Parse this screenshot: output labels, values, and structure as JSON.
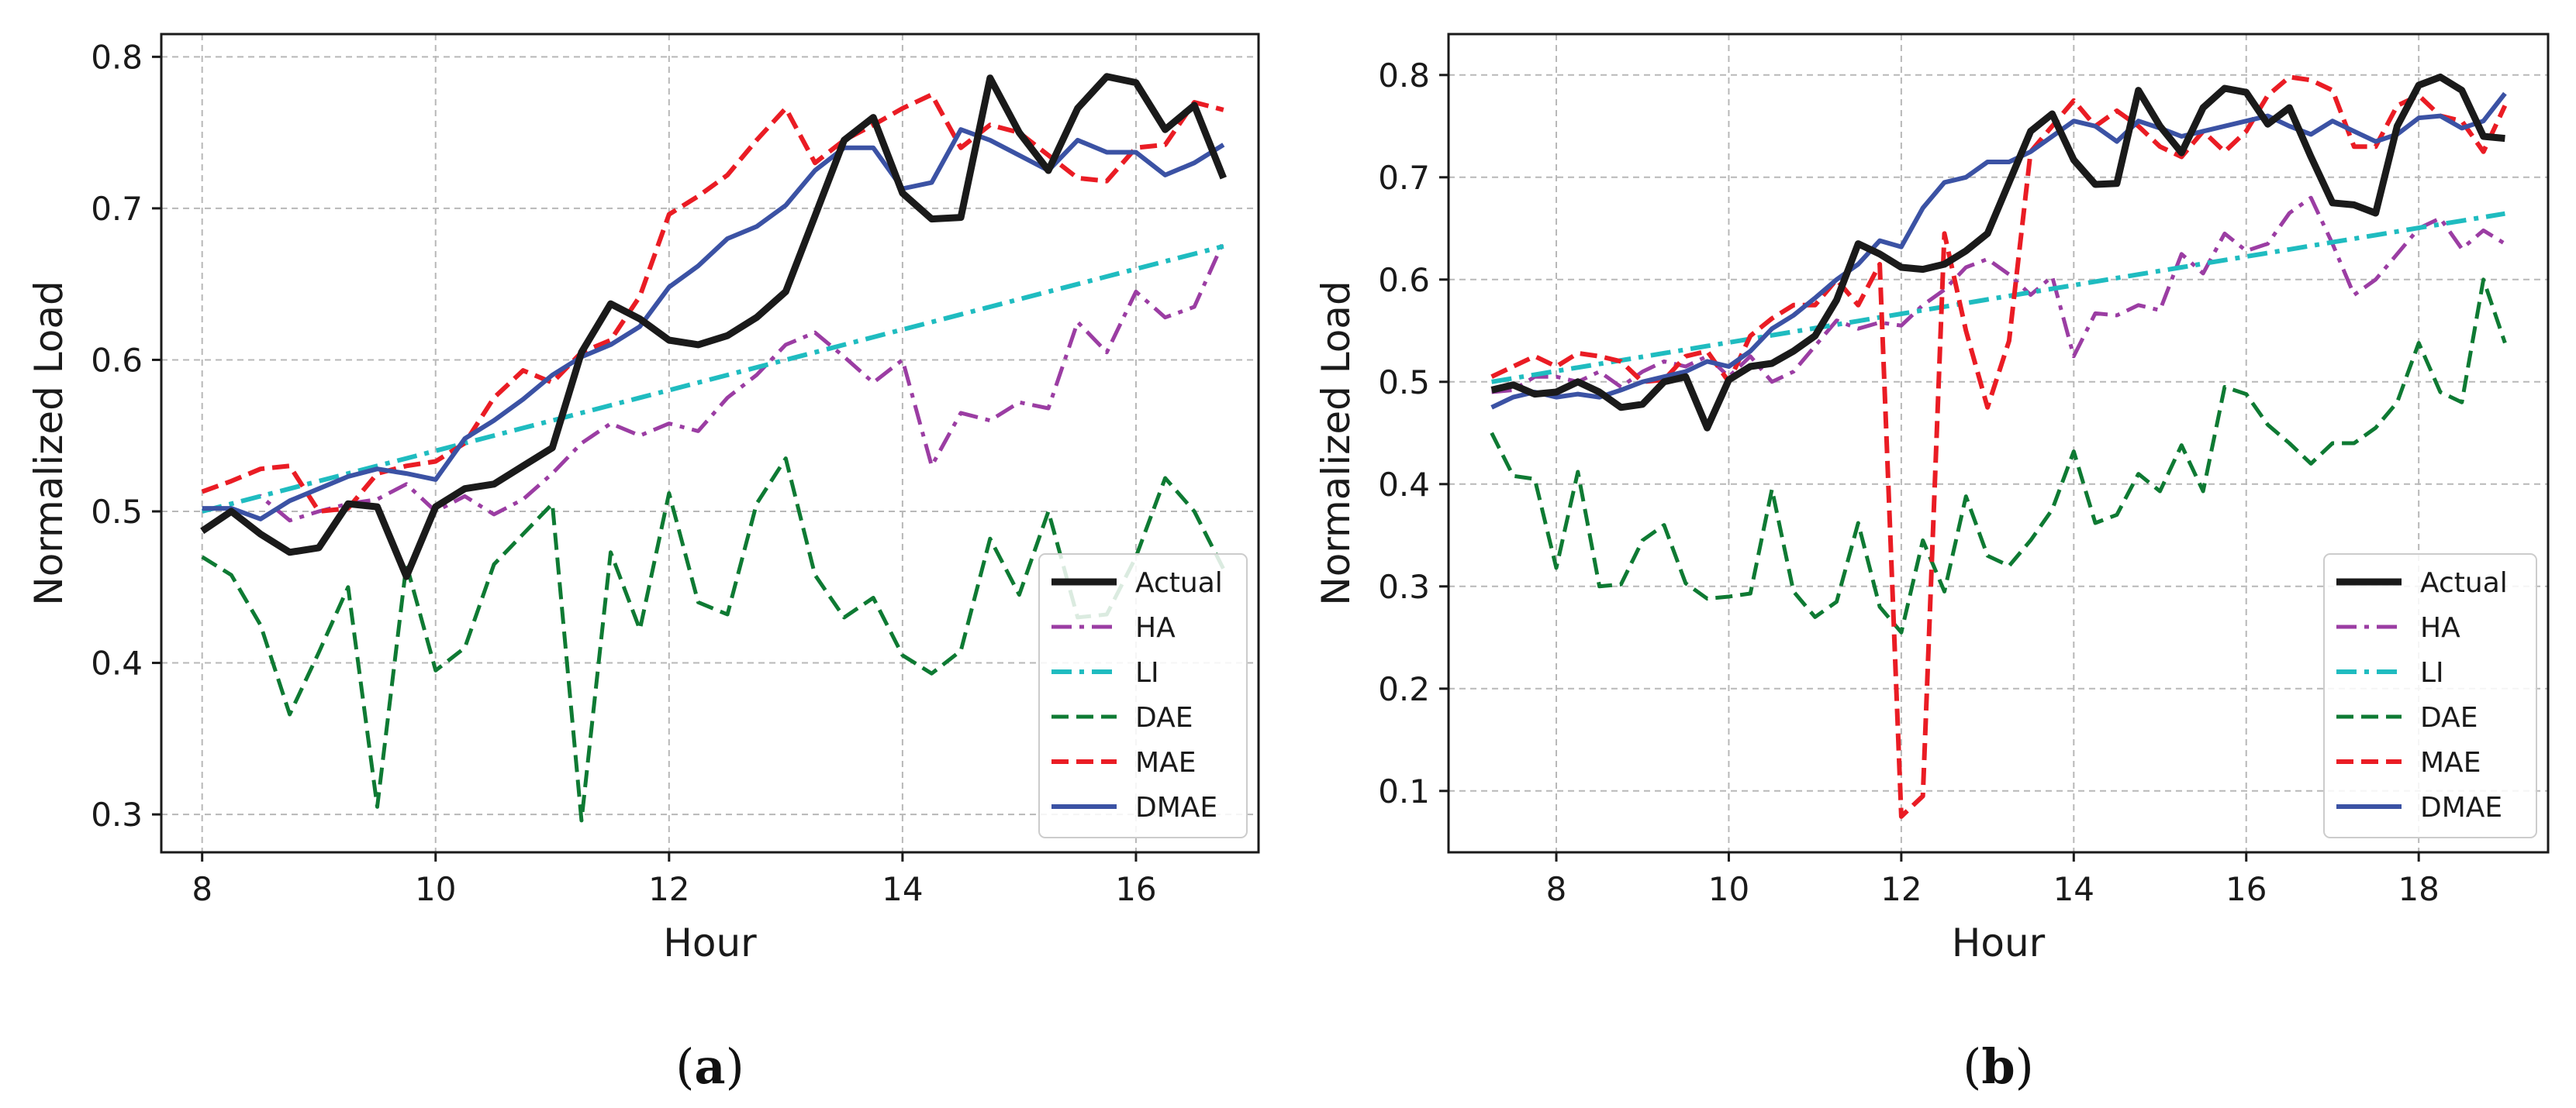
{
  "chart_data": [
    {
      "type": "line",
      "caption_prefix": "(",
      "caption_letter": "a",
      "caption_suffix": ")",
      "xlabel": "Hour",
      "ylabel": "Normalized Load",
      "xlim": [
        7.65,
        17.05
      ],
      "ylim": [
        0.275,
        0.815
      ],
      "xticks": [
        8,
        10,
        12,
        14,
        16
      ],
      "yticks": [
        0.3,
        0.4,
        0.5,
        0.6,
        0.7,
        0.8
      ],
      "ytick_labels": [
        "0.3",
        "0.4",
        "0.5",
        "0.6",
        "0.7",
        "0.8"
      ],
      "grid": true,
      "legend_position": "bottom-right",
      "x": [
        8.0,
        8.25,
        8.5,
        8.75,
        9.0,
        9.25,
        9.5,
        9.75,
        10.0,
        10.25,
        10.5,
        10.75,
        11.0,
        11.25,
        11.5,
        11.75,
        12.0,
        12.25,
        12.5,
        12.75,
        13.0,
        13.25,
        13.5,
        13.75,
        14.0,
        14.25,
        14.5,
        14.75,
        15.0,
        15.25,
        15.5,
        15.75,
        16.0,
        16.25,
        16.5,
        16.75
      ],
      "series": [
        {
          "name": "Actual",
          "color": "#1a1a1a",
          "dash": "solid",
          "width": 9,
          "values": [
            0.487,
            0.5,
            0.485,
            0.473,
            0.476,
            0.505,
            0.503,
            0.457,
            0.503,
            0.515,
            0.518,
            0.53,
            0.542,
            0.605,
            0.637,
            0.627,
            0.613,
            0.61,
            0.616,
            0.628,
            0.645,
            0.695,
            0.745,
            0.76,
            0.71,
            0.693,
            0.694,
            0.786,
            0.75,
            0.725,
            0.766,
            0.787,
            0.783,
            0.752,
            0.768,
            0.72
          ]
        },
        {
          "name": "HA",
          "color": "#9b3da3",
          "dash": "dashdot",
          "width": 5,
          "values": [
            0.5,
            0.505,
            0.51,
            0.494,
            0.5,
            0.505,
            0.508,
            0.518,
            0.5,
            0.51,
            0.498,
            0.508,
            0.525,
            0.545,
            0.558,
            0.55,
            0.558,
            0.553,
            0.575,
            0.59,
            0.61,
            0.618,
            0.602,
            0.585,
            0.6,
            0.53,
            0.565,
            0.56,
            0.572,
            0.568,
            0.625,
            0.605,
            0.645,
            0.628,
            0.635,
            0.678
          ]
        },
        {
          "name": "LI",
          "color": "#1fbcc0",
          "dash": "dashdot",
          "width": 6,
          "values": [
            0.5,
            0.505,
            0.51,
            0.515,
            0.52,
            0.525,
            0.53,
            0.535,
            0.54,
            0.545,
            0.55,
            0.555,
            0.56,
            0.565,
            0.57,
            0.575,
            0.58,
            0.585,
            0.59,
            0.595,
            0.6,
            0.605,
            0.61,
            0.615,
            0.62,
            0.625,
            0.63,
            0.635,
            0.64,
            0.645,
            0.65,
            0.655,
            0.66,
            0.665,
            0.67,
            0.675
          ]
        },
        {
          "name": "DAE",
          "color": "#0e7a33",
          "dash": "dashed",
          "width": 5,
          "values": [
            0.47,
            0.458,
            0.425,
            0.366,
            0.407,
            0.45,
            0.305,
            0.465,
            0.395,
            0.41,
            0.465,
            0.485,
            0.505,
            0.296,
            0.473,
            0.422,
            0.512,
            0.44,
            0.432,
            0.505,
            0.535,
            0.458,
            0.43,
            0.443,
            0.405,
            0.393,
            0.408,
            0.482,
            0.445,
            0.5,
            0.43,
            0.432,
            0.47,
            0.522,
            0.5,
            0.462
          ]
        },
        {
          "name": "MAE",
          "color": "#ea1c24",
          "dash": "dashed",
          "width": 6,
          "values": [
            0.513,
            0.52,
            0.528,
            0.53,
            0.5,
            0.502,
            0.525,
            0.53,
            0.533,
            0.545,
            0.575,
            0.593,
            0.585,
            0.605,
            0.613,
            0.642,
            0.696,
            0.708,
            0.722,
            0.745,
            0.766,
            0.73,
            0.745,
            0.755,
            0.766,
            0.775,
            0.74,
            0.755,
            0.75,
            0.735,
            0.72,
            0.718,
            0.74,
            0.742,
            0.77,
            0.765
          ]
        },
        {
          "name": "DMAE",
          "color": "#3b52a4",
          "dash": "solid",
          "width": 6,
          "values": [
            0.502,
            0.502,
            0.495,
            0.507,
            0.515,
            0.523,
            0.528,
            0.525,
            0.521,
            0.548,
            0.56,
            0.574,
            0.59,
            0.602,
            0.61,
            0.622,
            0.648,
            0.662,
            0.68,
            0.688,
            0.702,
            0.725,
            0.74,
            0.74,
            0.713,
            0.717,
            0.752,
            0.745,
            0.735,
            0.725,
            0.745,
            0.737,
            0.737,
            0.722,
            0.73,
            0.742
          ]
        }
      ]
    },
    {
      "type": "line",
      "caption_prefix": "(",
      "caption_letter": "b",
      "caption_suffix": ")",
      "xlabel": "Hour",
      "ylabel": "Normalized Load",
      "xlim": [
        6.75,
        19.5
      ],
      "ylim": [
        0.04,
        0.84
      ],
      "xticks": [
        8,
        10,
        12,
        14,
        16,
        18
      ],
      "yticks": [
        0.1,
        0.2,
        0.3,
        0.4,
        0.5,
        0.6,
        0.7,
        0.8
      ],
      "ytick_labels": [
        "0.1",
        "0.2",
        "0.3",
        "0.4",
        "0.5",
        "0.6",
        "0.7",
        "0.8"
      ],
      "grid": true,
      "legend_position": "bottom-right",
      "x": [
        7.25,
        7.5,
        7.75,
        8.0,
        8.25,
        8.5,
        8.75,
        9.0,
        9.25,
        9.5,
        9.75,
        10.0,
        10.25,
        10.5,
        10.75,
        11.0,
        11.25,
        11.5,
        11.75,
        12.0,
        12.25,
        12.5,
        12.75,
        13.0,
        13.25,
        13.5,
        13.75,
        14.0,
        14.25,
        14.5,
        14.75,
        15.0,
        15.25,
        15.5,
        15.75,
        16.0,
        16.25,
        16.5,
        16.75,
        17.0,
        17.25,
        17.5,
        17.75,
        18.0,
        18.25,
        18.5,
        18.75,
        19.0
      ],
      "series": [
        {
          "name": "Actual",
          "color": "#1a1a1a",
          "dash": "solid",
          "width": 9,
          "values": [
            0.492,
            0.497,
            0.488,
            0.49,
            0.5,
            0.49,
            0.475,
            0.478,
            0.5,
            0.505,
            0.455,
            0.502,
            0.515,
            0.518,
            0.53,
            0.545,
            0.58,
            0.635,
            0.625,
            0.612,
            0.61,
            0.615,
            0.628,
            0.645,
            0.695,
            0.745,
            0.762,
            0.717,
            0.693,
            0.694,
            0.785,
            0.75,
            0.724,
            0.768,
            0.787,
            0.783,
            0.752,
            0.768,
            0.72,
            0.675,
            0.673,
            0.665,
            0.75,
            0.79,
            0.798,
            0.785,
            0.74,
            0.738
          ]
        },
        {
          "name": "HA",
          "color": "#9b3da3",
          "dash": "dashdot",
          "width": 5,
          "values": [
            0.49,
            0.492,
            0.505,
            0.505,
            0.5,
            0.51,
            0.495,
            0.51,
            0.52,
            0.515,
            0.525,
            0.505,
            0.525,
            0.5,
            0.51,
            0.535,
            0.56,
            0.552,
            0.558,
            0.555,
            0.575,
            0.59,
            0.612,
            0.62,
            0.605,
            0.585,
            0.603,
            0.525,
            0.567,
            0.565,
            0.575,
            0.57,
            0.625,
            0.606,
            0.645,
            0.628,
            0.635,
            0.665,
            0.68,
            0.635,
            0.585,
            0.6,
            0.625,
            0.65,
            0.66,
            0.63,
            0.648,
            0.635
          ]
        },
        {
          "name": "LI",
          "color": "#1fbcc0",
          "dash": "dashdot",
          "width": 6,
          "values": [
            0.5,
            0.5035,
            0.507,
            0.5105,
            0.514,
            0.5175,
            0.521,
            0.5245,
            0.528,
            0.5315,
            0.535,
            0.5385,
            0.542,
            0.5455,
            0.549,
            0.5525,
            0.556,
            0.5595,
            0.563,
            0.5665,
            0.57,
            0.5735,
            0.577,
            0.5805,
            0.584,
            0.5875,
            0.591,
            0.5945,
            0.598,
            0.6015,
            0.605,
            0.6085,
            0.612,
            0.6155,
            0.619,
            0.6225,
            0.626,
            0.6295,
            0.633,
            0.6365,
            0.64,
            0.6435,
            0.647,
            0.6505,
            0.654,
            0.6575,
            0.661,
            0.6645
          ]
        },
        {
          "name": "DAE",
          "color": "#0e7a33",
          "dash": "dashed",
          "width": 5,
          "values": [
            0.45,
            0.408,
            0.405,
            0.318,
            0.412,
            0.3,
            0.302,
            0.345,
            0.36,
            0.303,
            0.288,
            0.29,
            0.293,
            0.395,
            0.295,
            0.27,
            0.285,
            0.362,
            0.28,
            0.255,
            0.345,
            0.295,
            0.388,
            0.33,
            0.32,
            0.345,
            0.375,
            0.432,
            0.362,
            0.37,
            0.41,
            0.393,
            0.438,
            0.393,
            0.495,
            0.488,
            0.458,
            0.44,
            0.42,
            0.44,
            0.44,
            0.455,
            0.48,
            0.538,
            0.49,
            0.48,
            0.6,
            0.538
          ]
        },
        {
          "name": "MAE",
          "color": "#ea1c24",
          "dash": "dashed",
          "width": 6,
          "values": [
            0.505,
            0.515,
            0.525,
            0.515,
            0.528,
            0.525,
            0.52,
            0.5,
            0.502,
            0.525,
            0.53,
            0.5,
            0.545,
            0.562,
            0.575,
            0.575,
            0.6,
            0.575,
            0.615,
            0.075,
            0.095,
            0.645,
            0.55,
            0.475,
            0.54,
            0.725,
            0.75,
            0.775,
            0.75,
            0.765,
            0.75,
            0.73,
            0.72,
            0.745,
            0.725,
            0.745,
            0.78,
            0.798,
            0.795,
            0.785,
            0.73,
            0.73,
            0.77,
            0.78,
            0.76,
            0.755,
            0.725,
            0.77
          ]
        },
        {
          "name": "DMAE",
          "color": "#3b52a4",
          "dash": "solid",
          "width": 6,
          "values": [
            0.475,
            0.485,
            0.49,
            0.485,
            0.488,
            0.485,
            0.492,
            0.5,
            0.505,
            0.51,
            0.52,
            0.515,
            0.53,
            0.552,
            0.565,
            0.582,
            0.6,
            0.615,
            0.638,
            0.632,
            0.67,
            0.695,
            0.7,
            0.715,
            0.715,
            0.725,
            0.74,
            0.755,
            0.75,
            0.735,
            0.755,
            0.748,
            0.74,
            0.745,
            0.75,
            0.755,
            0.76,
            0.75,
            0.742,
            0.755,
            0.745,
            0.735,
            0.742,
            0.758,
            0.76,
            0.748,
            0.755,
            0.782
          ]
        }
      ]
    }
  ]
}
